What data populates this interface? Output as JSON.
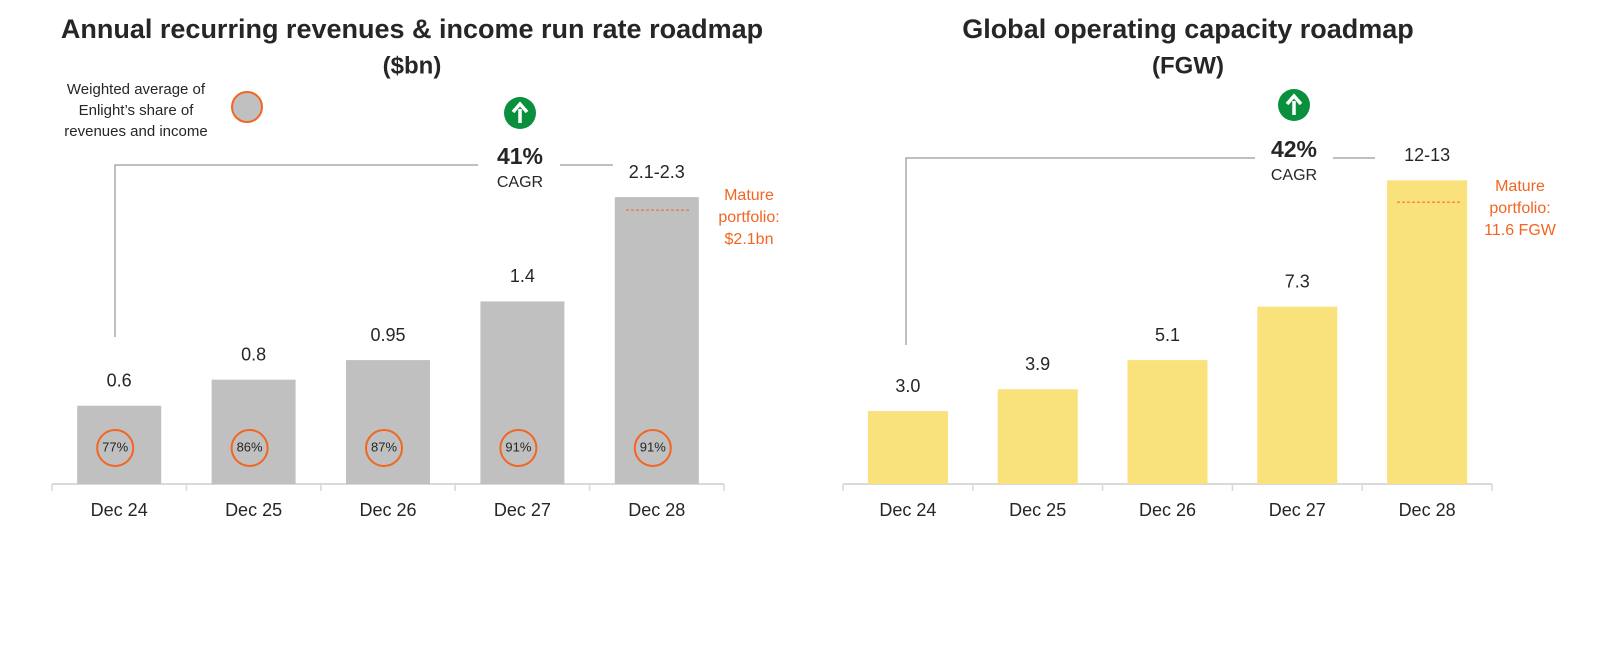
{
  "chart_data": [
    {
      "type": "bar",
      "title": "Annual recurring revenues & income run rate roadmap",
      "subtitle": "($bn)",
      "categories": [
        "Dec 24",
        "Dec 25",
        "Dec 26",
        "Dec 27",
        "Dec 28"
      ],
      "values": [
        0.6,
        0.8,
        0.95,
        1.4,
        2.2
      ],
      "value_labels": [
        "0.6",
        "0.8",
        "0.95",
        "1.4",
        "2.1-2.3"
      ],
      "color": "#c0c0c0",
      "ylim": [
        0,
        2.4
      ],
      "cagr": "41%",
      "cagr_label": "CAGR",
      "mature_portfolio": {
        "lines": [
          "Mature",
          "portfolio:",
          "$2.1bn"
        ],
        "value": 2.1
      },
      "share": {
        "legend": [
          "Weighted average of",
          "Enlight’s share of",
          "revenues and income"
        ],
        "values": [
          77,
          86,
          87,
          91,
          91
        ],
        "value_labels": [
          "77%",
          "86%",
          "87%",
          "91%",
          "91%"
        ]
      }
    },
    {
      "type": "bar",
      "title": "Global operating capacity roadmap",
      "subtitle": "(FGW)",
      "categories": [
        "Dec 24",
        "Dec 25",
        "Dec 26",
        "Dec 27",
        "Dec 28"
      ],
      "values": [
        3.0,
        3.9,
        5.1,
        7.3,
        12.5
      ],
      "value_labels": [
        "3.0",
        "3.9",
        "5.1",
        "7.3",
        "12-13"
      ],
      "color": "#f9e17c",
      "ylim": [
        0,
        13.5
      ],
      "cagr": "42%",
      "cagr_label": "CAGR",
      "mature_portfolio": {
        "lines": [
          "Mature",
          "portfolio:",
          "11.6 FGW"
        ],
        "value": 11.6
      }
    }
  ]
}
